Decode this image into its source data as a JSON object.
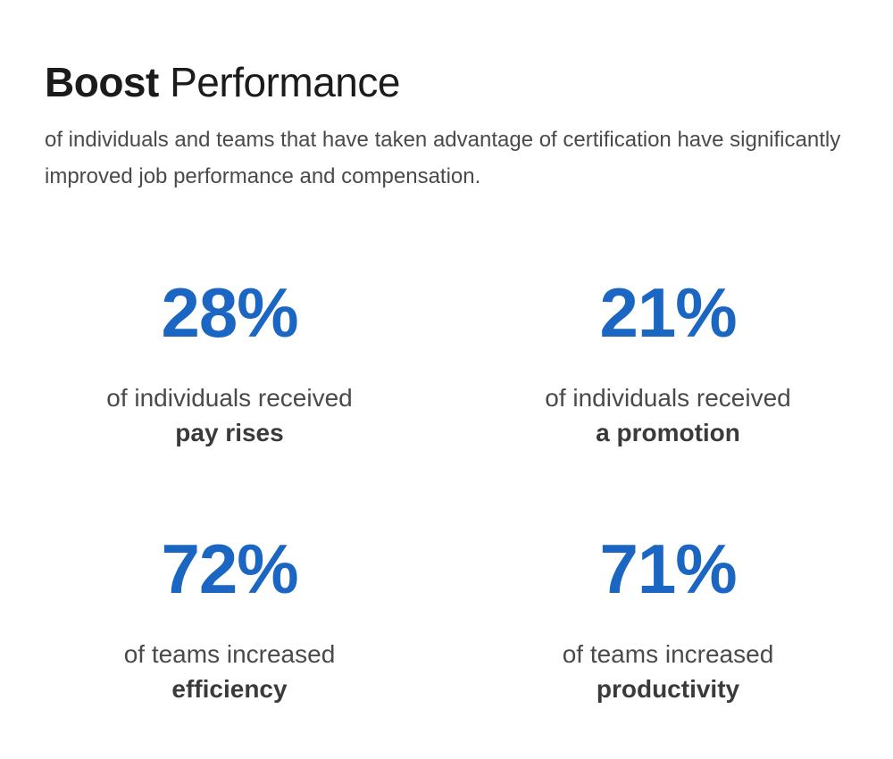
{
  "heading": {
    "bold": "Boost",
    "light": "Performance"
  },
  "intro": "of individuals and teams that have taken advantage of certification have significantly improved job performance and compensation.",
  "stats": [
    {
      "value": "28%",
      "text": "of individuals received",
      "strong": "pay rises"
    },
    {
      "value": "21%",
      "text": "of individuals received",
      "strong": "a promotion"
    },
    {
      "value": "72%",
      "text": "of teams increased",
      "strong": "efficiency"
    },
    {
      "value": "71%",
      "text": "of teams increased",
      "strong": "productivity"
    }
  ],
  "colors": {
    "accent": "#1a66c2",
    "heading": "#1b1b1b",
    "body": "#4a4a4a"
  }
}
